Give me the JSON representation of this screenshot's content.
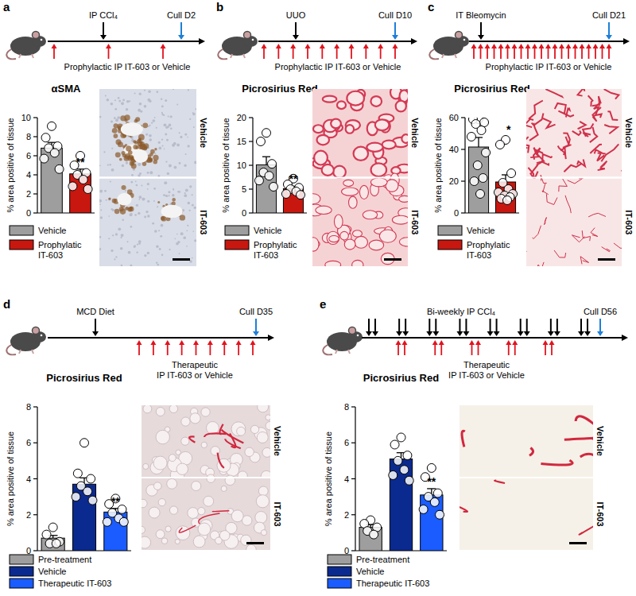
{
  "chart_data": [
    {
      "panel": "a",
      "type": "bar",
      "title": "αSMA",
      "y_label": "% area positive of tissue",
      "ylim": [
        0,
        10
      ],
      "yticks": [
        0,
        2,
        4,
        6,
        8,
        10
      ],
      "tick_labels": "y",
      "series": [
        {
          "name": "Vehicle",
          "color": "#9e9e9e",
          "values": [
            6.8
          ],
          "errors": [
            0.6
          ],
          "points": [
            9.1,
            7.9,
            7.0,
            6.8,
            6.3,
            5.7,
            4.6
          ]
        },
        {
          "name": "Prophylatic IT-603",
          "color": "#c8170f",
          "values": [
            4.1
          ],
          "errors": [
            0.5
          ],
          "points": [
            6.0,
            5.0,
            4.2,
            4.0,
            3.5,
            2.8,
            2.5
          ],
          "significance": "**"
        }
      ],
      "timeline": {
        "events": [
          "IP CCl₄"
        ],
        "cull": "Cull D2",
        "treatment": [
          "Prophylactic IP IT-603 or Vehicle"
        ]
      },
      "image_labels": [
        "Vehicle",
        "IT-603"
      ]
    },
    {
      "panel": "b",
      "type": "bar",
      "title": "Picrosirius Red",
      "y_label": "% area positive of tissue",
      "ylim": [
        0,
        20
      ],
      "yticks": [
        0,
        5,
        10,
        15,
        20
      ],
      "tick_labels": "y",
      "series": [
        {
          "name": "Vehicle",
          "color": "#9e9e9e",
          "values": [
            10.1
          ],
          "errors": [
            1.7
          ],
          "points": [
            16.8,
            15.0,
            10.3,
            8.5,
            7.8,
            6.8,
            5.5
          ]
        },
        {
          "name": "Prophylatic IT-603",
          "color": "#c8170f",
          "values": [
            5.1
          ],
          "errors": [
            0.5
          ],
          "points": [
            7.2,
            6.0,
            5.3,
            5.0,
            4.5,
            4.0,
            3.8
          ],
          "significance": "**"
        }
      ],
      "timeline": {
        "events": [
          "UUO"
        ],
        "cull": "Cull D10",
        "treatment": [
          "Prophylactic IP IT-603 or Vehicle"
        ]
      },
      "image_labels": [
        "Vehicle",
        "IT-603"
      ]
    },
    {
      "panel": "c",
      "type": "bar",
      "title": "Picrosirius Red",
      "y_label": "% area positive of tissue",
      "ylim": [
        0,
        60
      ],
      "yticks": [
        0,
        20,
        40,
        60
      ],
      "tick_labels": "y",
      "series": [
        {
          "name": "Vehicle",
          "color": "#9e9e9e",
          "values": [
            41.5
          ],
          "errors": [
            6.0
          ],
          "points": [
            59,
            59,
            57,
            56,
            52,
            48,
            38,
            30,
            22,
            20,
            12
          ]
        },
        {
          "name": "Prophylatic IT-603",
          "color": "#c8170f",
          "values": [
            19.5
          ],
          "errors": [
            4.5
          ],
          "points": [
            46,
            43,
            25,
            19,
            15,
            13,
            12,
            11,
            10,
            9,
            8
          ],
          "significance": "*"
        }
      ],
      "timeline": {
        "events": [
          "IT Bleomycin"
        ],
        "cull": "Cull D21",
        "treatment": [
          "Prophylactic IP IT-603 or Vehicle"
        ]
      },
      "image_labels": [
        "Vehicle",
        "IT-603"
      ]
    },
    {
      "panel": "d",
      "type": "bar",
      "title": "Picrosirius Red",
      "y_label": "% area positive of tissue",
      "ylim": [
        0,
        8
      ],
      "yticks": [
        0,
        2,
        4,
        6,
        8
      ],
      "tick_labels": "y",
      "series": [
        {
          "name": "Pre-treatment",
          "color": "#9e9e9e",
          "values": [
            0.7
          ],
          "errors": [
            0.15
          ],
          "points": [
            1.3,
            0.9,
            0.5,
            0.4,
            0.4
          ]
        },
        {
          "name": "Vehicle",
          "color": "#0b2a8f",
          "values": [
            3.7
          ],
          "errors": [
            0.35
          ],
          "points": [
            6.0,
            4.3,
            4.0,
            3.6,
            3.3,
            3.0,
            2.8
          ]
        },
        {
          "name": "Therapeutic IT-603",
          "color": "#1a5cff",
          "values": [
            2.15
          ],
          "errors": [
            0.2
          ],
          "points": [
            2.9,
            2.6,
            2.3,
            2.1,
            1.8,
            1.6,
            1.6
          ],
          "significance": "**"
        }
      ],
      "timeline": {
        "events": [
          "MCD Diet"
        ],
        "cull": "Cull D35",
        "treatment": [
          "Therapeutic",
          "IP IT-603 or Vehicle"
        ]
      },
      "image_labels": [
        "Vehicle",
        "IT-603"
      ]
    },
    {
      "panel": "e",
      "type": "bar",
      "title": "Picrosirius Red",
      "y_label": "% area positive of tissue",
      "ylim": [
        0,
        8
      ],
      "yticks": [
        0,
        2,
        4,
        6,
        8
      ],
      "tick_labels": "y",
      "series": [
        {
          "name": "Pre-treatment",
          "color": "#9e9e9e",
          "values": [
            1.3
          ],
          "errors": [
            0.15
          ],
          "points": [
            1.7,
            1.5,
            1.3,
            1.1,
            0.9
          ]
        },
        {
          "name": "Vehicle",
          "color": "#0b2a8f",
          "values": [
            5.1
          ],
          "errors": [
            0.35
          ],
          "points": [
            6.3,
            5.9,
            5.3,
            5.0,
            4.5,
            4.2,
            3.9
          ]
        },
        {
          "name": "Therapeutic IT-603",
          "color": "#1a5cff",
          "values": [
            3.1
          ],
          "errors": [
            0.35
          ],
          "points": [
            4.6,
            4.1,
            3.2,
            3.0,
            2.7,
            2.3,
            2.0
          ],
          "significance": "**"
        }
      ],
      "timeline": {
        "events": [
          "Bi-weekly IP CCl₄"
        ],
        "cull": "Cull D56",
        "treatment": [
          "Therapeutic",
          "IP IT-603 or Vehicle"
        ]
      },
      "image_labels": [
        "Vehicle",
        "IT-603"
      ]
    }
  ]
}
